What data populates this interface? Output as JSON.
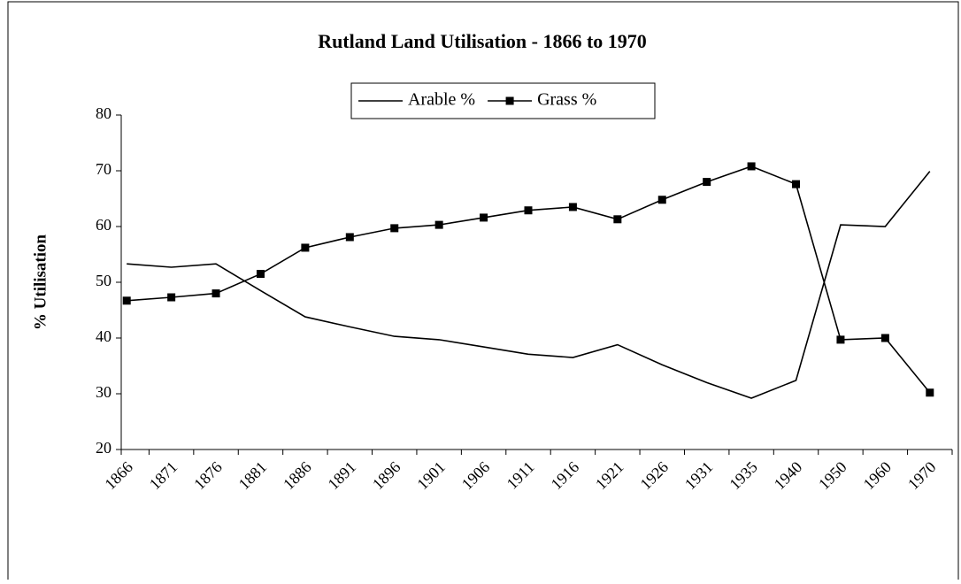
{
  "chart_data": {
    "type": "line",
    "title": "Rutland Land Utilisation - 1866 to 1970",
    "y_label": "% Utilisation",
    "categories": [
      "1866",
      "1871",
      "1876",
      "1881",
      "1886",
      "1891",
      "1896",
      "1901",
      "1906",
      "1911",
      "1916",
      "1921",
      "1926",
      "1931",
      "1935",
      "1940",
      "1950",
      "1960",
      "1970"
    ],
    "series": [
      {
        "name": "Arable %",
        "color": "#000000",
        "marker": "none",
        "values": [
          53.3,
          52.7,
          53.3,
          48.5,
          43.8,
          42,
          40.3,
          39.7,
          38.4,
          37.1,
          36.5,
          38.8,
          35.2,
          32,
          29.2,
          32.4,
          60.3,
          60,
          69.9
        ]
      },
      {
        "name": "Grass %",
        "color": "#000000",
        "marker": "square",
        "values": [
          46.7,
          47.3,
          48,
          51.5,
          56.2,
          58.1,
          59.7,
          60.3,
          61.6,
          62.9,
          63.5,
          61.3,
          64.8,
          68,
          70.8,
          67.6,
          39.7,
          40,
          30.2
        ]
      }
    ],
    "ylim": [
      20,
      80
    ],
    "yticks": [
      20,
      30,
      40,
      50,
      60,
      70,
      80
    ],
    "grid": false,
    "legend": "top"
  }
}
